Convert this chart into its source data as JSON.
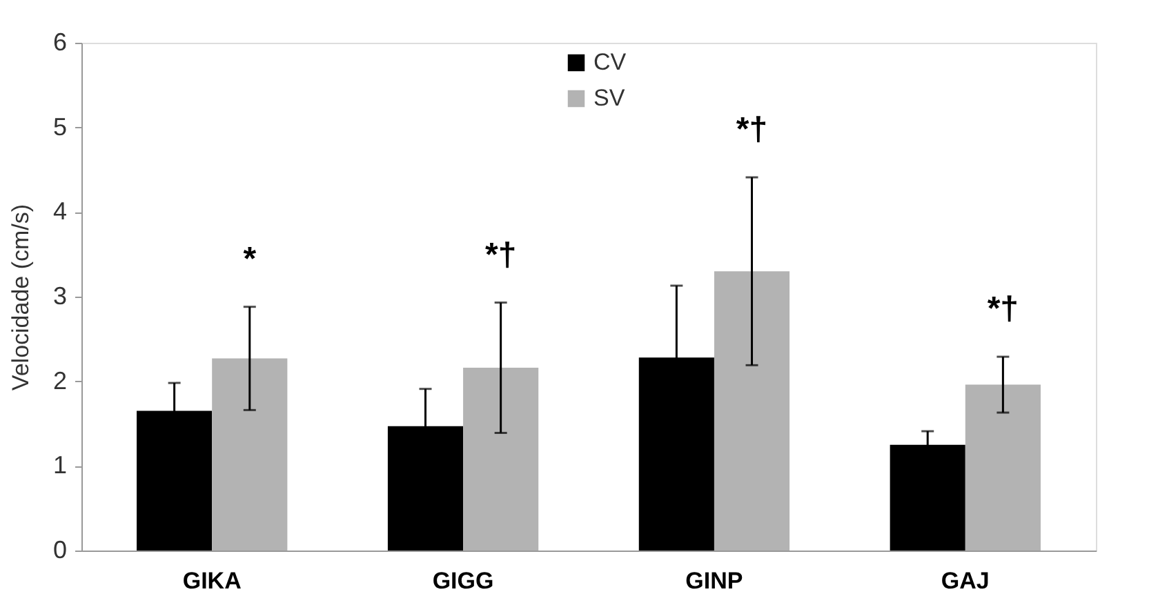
{
  "chart_data": {
    "type": "bar",
    "ylabel": "Velocidade (cm/s)",
    "categories": [
      "GIKA",
      "GIGG",
      "GINP",
      "GAJ"
    ],
    "series": [
      {
        "name": "CV",
        "color": "#000000",
        "values": [
          1.65,
          1.47,
          2.28,
          1.25
        ],
        "errors": [
          0.33,
          0.44,
          0.85,
          0.16
        ]
      },
      {
        "name": "SV",
        "color": "#b3b3b3",
        "values": [
          2.27,
          2.16,
          3.3,
          1.96
        ],
        "errors": [
          0.61,
          0.77,
          1.11,
          0.33
        ]
      }
    ],
    "annotations": [
      "*",
      "*†",
      "*†",
      "*†"
    ],
    "ylim": [
      0,
      6
    ],
    "yticks": [
      0,
      1,
      2,
      3,
      4,
      5,
      6
    ],
    "grid": false,
    "legend": "top"
  }
}
